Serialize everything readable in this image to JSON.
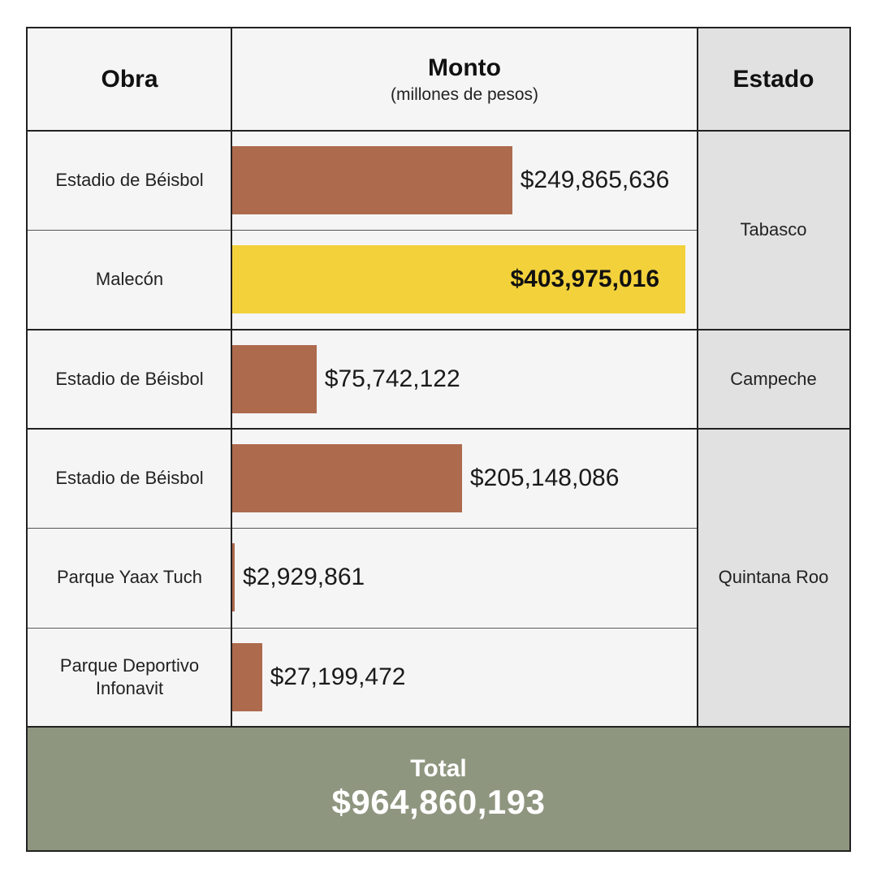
{
  "header": {
    "obra": "Obra",
    "monto": "Monto",
    "monto_unit": "(millones de pesos)",
    "estado": "Estado"
  },
  "colors": {
    "bar_default": "#ad6a4d",
    "bar_highlight": "#f2d13b",
    "total_bg": "#8f9680",
    "estado_bg": "#e1e1e1",
    "cell_bg": "#f5f5f5"
  },
  "estados": [
    {
      "name": "Tabasco",
      "rows": [
        0,
        1
      ]
    },
    {
      "name": "Campeche",
      "rows": [
        2,
        2
      ]
    },
    {
      "name": "Quintana Roo",
      "rows": [
        3,
        5
      ]
    }
  ],
  "chart_data": {
    "type": "bar",
    "orientation": "horizontal",
    "categories": [
      "Estadio de Béisbol",
      "Malecón",
      "Estadio de Béisbol",
      "Estadio de Béisbol",
      "Parque Yaax Tuch",
      "Parque Deportivo Infonavit"
    ],
    "values": [
      249865636,
      403975016,
      75742122,
      205148086,
      2929861,
      27199472
    ],
    "value_labels": [
      "$249,865,636",
      "$403,975,016",
      "$75,742,122",
      "$205,148,086",
      "$2,929,861",
      "$27,199,472"
    ],
    "highlight_index": 1,
    "xlim": [
      0,
      403975016
    ]
  },
  "total": {
    "label": "Total",
    "value": "$964,860,193"
  }
}
